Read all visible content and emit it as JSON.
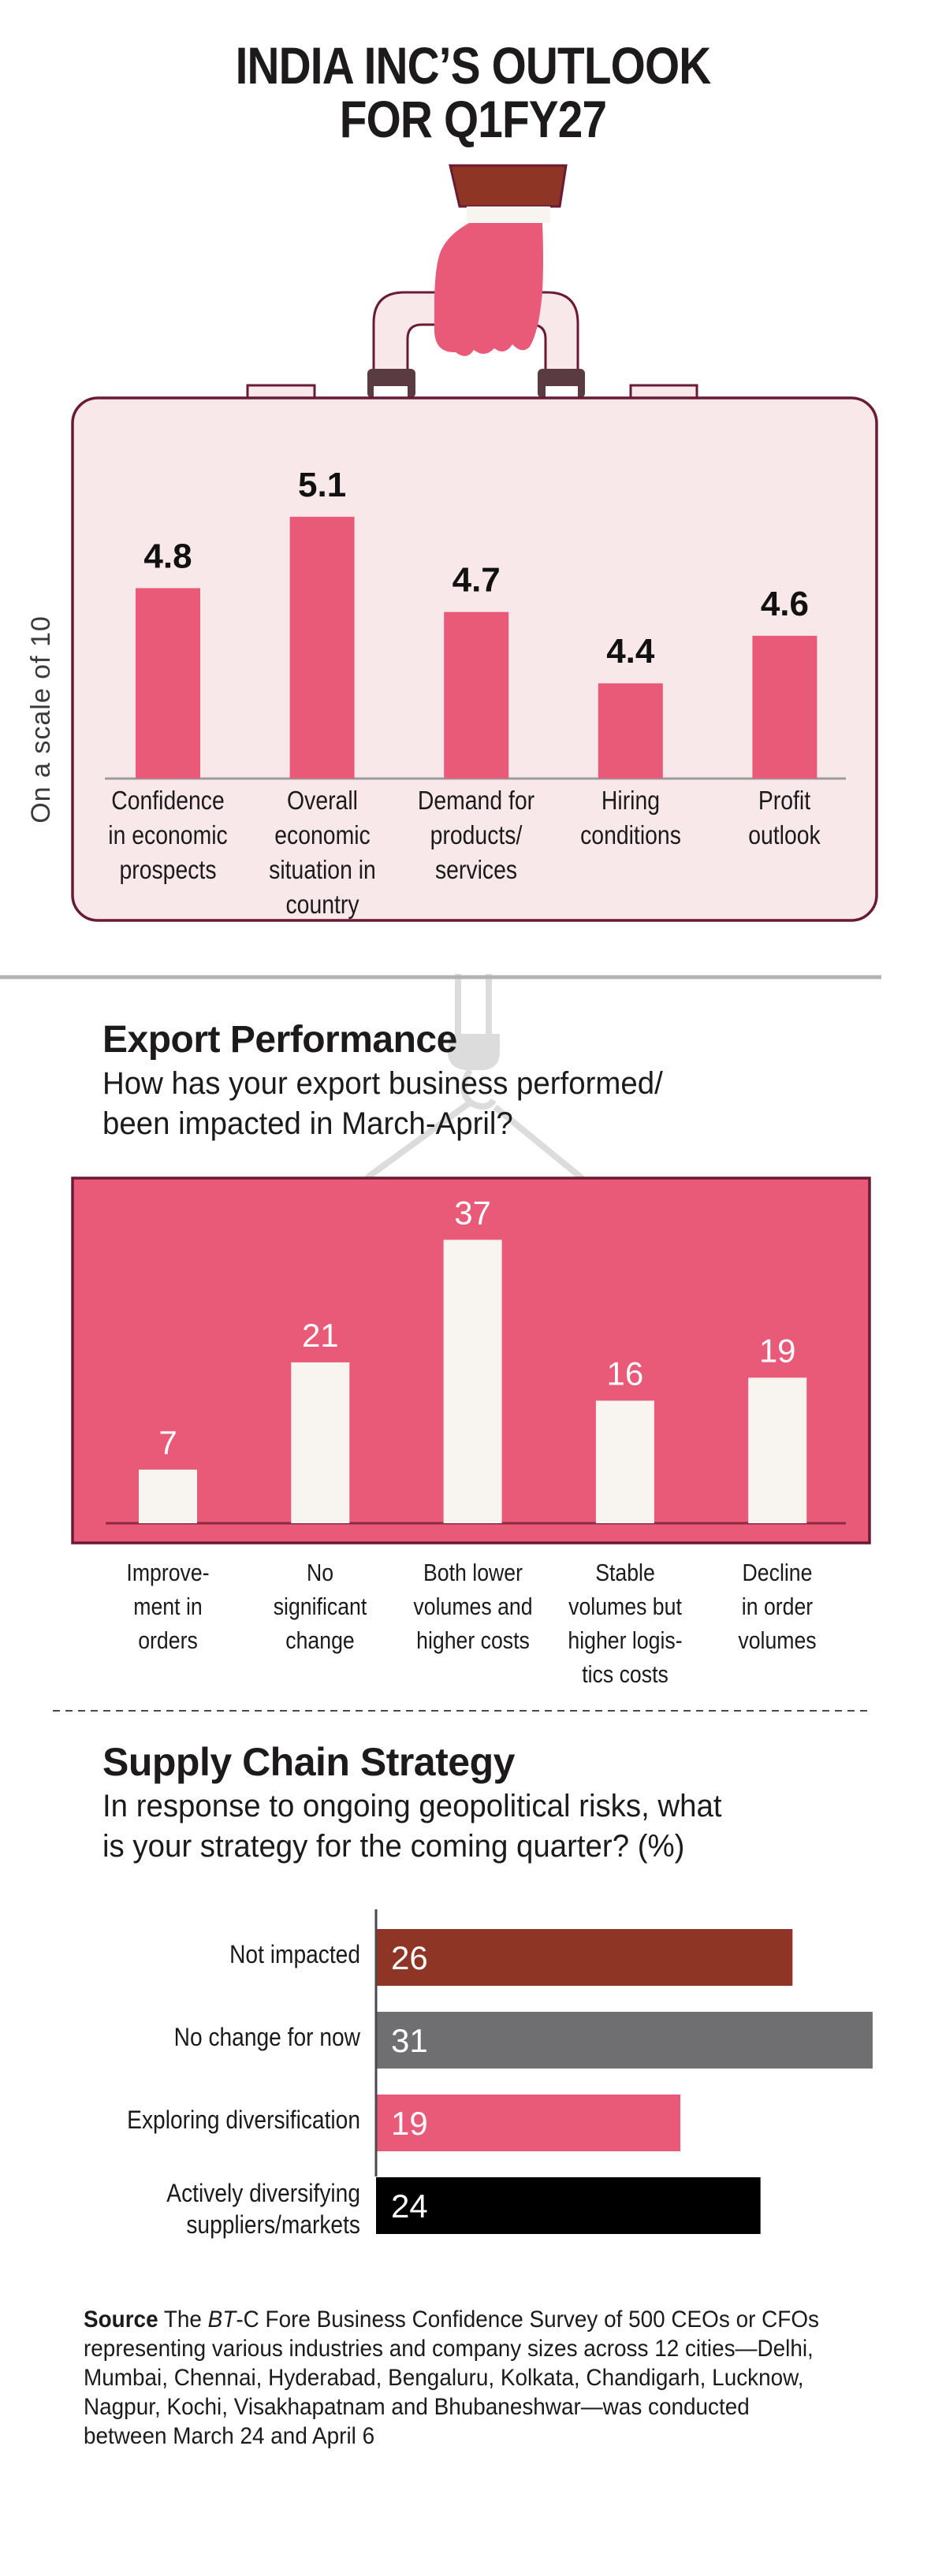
{
  "header": {
    "title_line1": "INDIA INC’S OUTLOOK",
    "title_line2": "FOR Q1FY27"
  },
  "colors": {
    "pink": "#e85a78",
    "briefcase_fill": "#f8e8e9",
    "briefcase_stroke": "#6b1a36",
    "brown": "#8e3526",
    "gray": "#6f6f71",
    "black": "#000000",
    "cream": "#f8f4f0",
    "hook_gray": "#dcdcdc",
    "divider_gray": "#b3b3b5"
  },
  "chart_data": [
    {
      "type": "bar",
      "name": "outlook",
      "title": "",
      "ylabel": "On a scale of 10",
      "xlabel": "",
      "ylim": [
        4.0,
        5.2
      ],
      "grid": false,
      "categories": [
        "Confidence\nin economic\nprospects",
        "Overall\neconomic\nsituation in\ncountry",
        "Demand for\nproducts/\nservices",
        "Hiring\nconditions",
        "Profit\noutlook"
      ],
      "values": [
        4.8,
        5.1,
        4.7,
        4.4,
        4.6
      ],
      "value_labels": [
        "4.8",
        "5.1",
        "4.7",
        "4.4",
        "4.6"
      ]
    },
    {
      "type": "bar",
      "name": "export_performance",
      "title": "Export Performance",
      "subtitle": "How has your export business performed/\nbeen impacted in March-April?",
      "xlabel": "",
      "ylabel": "",
      "ylim": [
        0,
        40
      ],
      "grid": false,
      "categories": [
        "Improve-\nment in\norders",
        "No\nsignificant\nchange",
        "Both lower\nvolumes and\nhigher costs",
        "Stable\nvolumes but\nhigher logis-\ntics costs",
        "Decline\nin order\nvolumes"
      ],
      "values": [
        7,
        21,
        37,
        16,
        19
      ],
      "value_labels": [
        "7",
        "21",
        "37",
        "16",
        "19"
      ]
    },
    {
      "type": "bar",
      "orientation": "horizontal",
      "name": "supply_chain_strategy",
      "title": "Supply Chain Strategy",
      "subtitle": "In response to ongoing geopolitical risks, what\nis your strategy for the coming quarter? (%)",
      "xlabel": "",
      "ylabel": "",
      "xlim": [
        0,
        31
      ],
      "grid": false,
      "categories": [
        "Not impacted",
        "No change for now",
        "Exploring diversification",
        "Actively diversifying\nsuppliers/markets"
      ],
      "values": [
        26,
        31,
        19,
        24
      ],
      "value_labels": [
        "26",
        "31",
        "19",
        "24"
      ],
      "bar_colors": [
        "#8e3526",
        "#6f6f71",
        "#e85a78",
        "#000000"
      ]
    }
  ],
  "export": {
    "title": "Export Performance",
    "subtitle": "How has your export business performed/\nbeen impacted in March-April?"
  },
  "supply": {
    "title": "Supply Chain Strategy",
    "subtitle": "In response to ongoing geopolitical risks, what\nis your strategy for the coming quarter? (%)"
  },
  "source": {
    "label": "Source",
    "pre": "The ",
    "italic": "BT",
    "text": "-C Fore Business Confidence Survey of 500 CEOs or CFOs representing various industries and company sizes across 12 cities—Delhi, Mumbai, Chennai, Hyderabad, Bengaluru, Kolkata, Chandigarh, Lucknow, Nagpur, Kochi, Visakhapatnam and Bhubaneshwar—was conducted between March 24 and April 6"
  }
}
